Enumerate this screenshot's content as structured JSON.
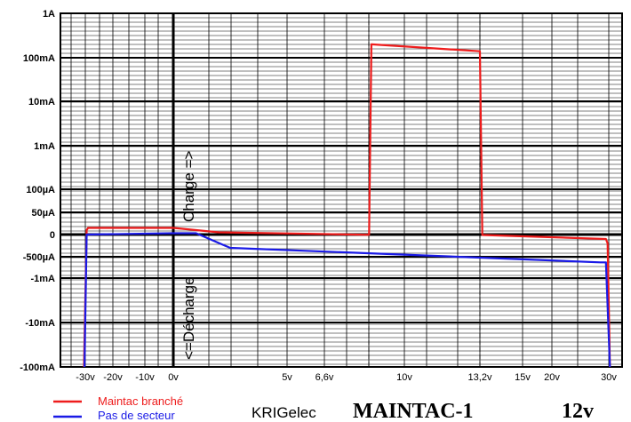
{
  "chart_data": {
    "type": "line",
    "y_scale": "log-symmetric (current, A)",
    "y_ticks": [
      "1A",
      "100mA",
      "10mA",
      "1mA",
      "100µA",
      "50µA",
      "0",
      "-500µA",
      "-1mA",
      "-10mA",
      "-100mA"
    ],
    "x_ticks": [
      "-30v",
      "-20v",
      "-10v",
      "0v",
      "5v",
      "6,6v",
      "10v",
      "13,2v",
      "15v",
      "20v",
      "30v"
    ],
    "region_labels": {
      "charge": "Charge =>",
      "decharge": "<=Décharge"
    },
    "grid": true,
    "legend_position": "bottom-left",
    "series": [
      {
        "name": "Maintac branché",
        "color": "#ee1c1c",
        "points": [
          {
            "x": "-30.5v",
            "y": "-100mA"
          },
          {
            "x": "-29.5v",
            "y": "+10µA"
          },
          {
            "x": "-29v",
            "y": "+15µA"
          },
          {
            "x": "0v",
            "y": "+15µA"
          },
          {
            "x": "1v",
            "y": "+10µA"
          },
          {
            "x": "2v",
            "y": "+5µA"
          },
          {
            "x": "8.5v",
            "y": "-5µA"
          },
          {
            "x": "8.6v",
            "y": "200mA"
          },
          {
            "x": "13.2v",
            "y": "140mA"
          },
          {
            "x": "13.3v",
            "y": "-10µA"
          },
          {
            "x": "29.5v",
            "y": "-100µA"
          },
          {
            "x": "29.8v",
            "y": "-200µA"
          },
          {
            "x": "30.2v",
            "y": "-100mA"
          }
        ]
      },
      {
        "name": "Pas de secteur",
        "color": "#1a1ae6",
        "points": [
          {
            "x": "-30.3v",
            "y": "-100mA"
          },
          {
            "x": "-29.5v",
            "y": "0"
          },
          {
            "x": "0v",
            "y": "+3µA"
          },
          {
            "x": "1v",
            "y": "+3µA"
          },
          {
            "x": "2.5v",
            "y": "-300µA"
          },
          {
            "x": "28.5v",
            "y": "-600µA"
          },
          {
            "x": "29.5v",
            "y": "-600µA"
          },
          {
            "x": "30.2v",
            "y": "-100mA"
          }
        ]
      }
    ],
    "legend": [
      {
        "label": "Maintac branché",
        "color": "#ee1c1c"
      },
      {
        "label": "Pas de secteur",
        "color": "#1a1ae6"
      }
    ]
  },
  "footer": {
    "brand": "KRIGelec",
    "model": "MAINTAC-1",
    "voltage": "12v"
  }
}
